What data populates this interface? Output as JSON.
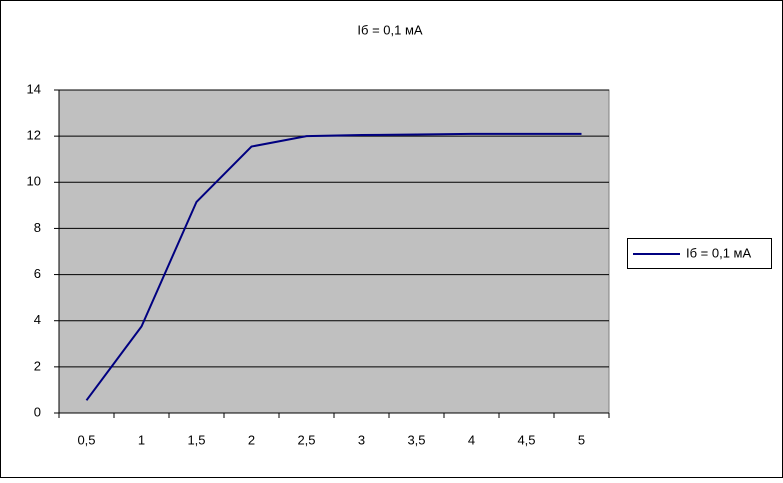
{
  "chart_data": {
    "type": "line",
    "title": "Iб = 0,1 мА",
    "categories": [
      "0,5",
      "1",
      "1,5",
      "2",
      "2,5",
      "3",
      "3,5",
      "4",
      "4,5",
      "5"
    ],
    "series": [
      {
        "name": "Iб = 0,1 мА",
        "color": "#000080",
        "values": [
          0.55,
          3.75,
          9.15,
          11.55,
          12.0,
          12.05,
          12.07,
          12.1,
          12.1,
          12.1
        ]
      }
    ],
    "ylim": [
      0,
      14
    ],
    "yticks": [
      0,
      2,
      4,
      6,
      8,
      10,
      12,
      14
    ],
    "grid": true,
    "legend": "right"
  }
}
